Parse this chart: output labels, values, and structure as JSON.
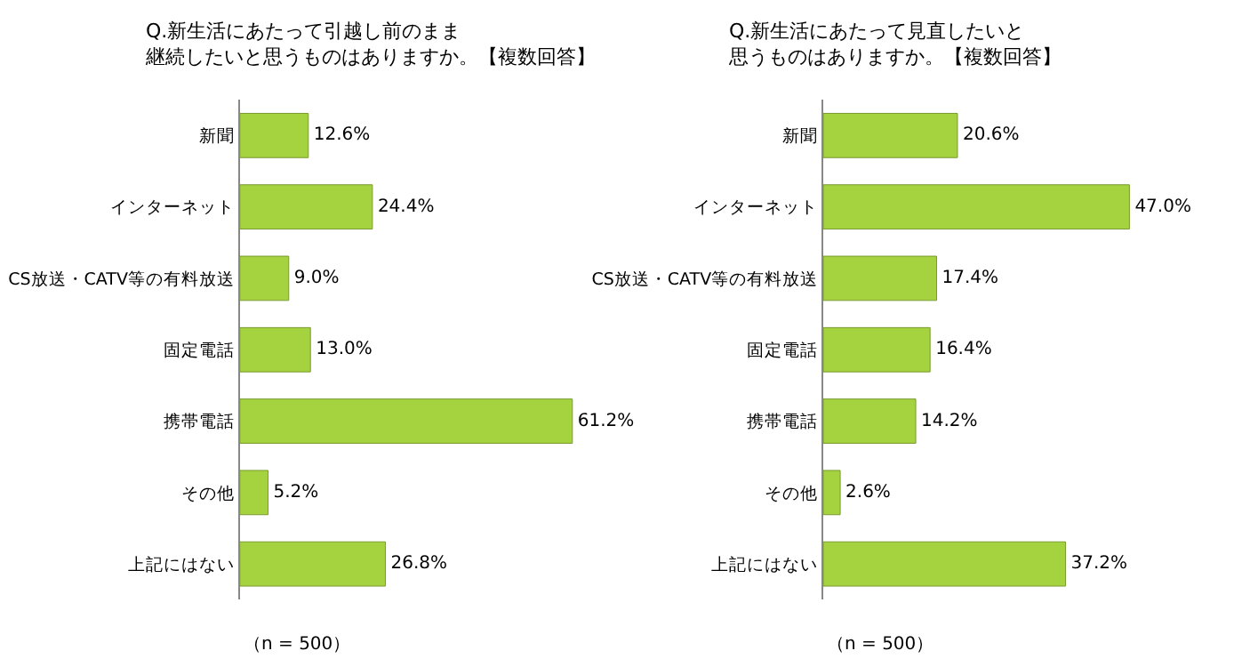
{
  "chart_data": [
    {
      "type": "bar",
      "orientation": "horizontal",
      "title": "Q.新生活にあたって引越し前のまま継続したいと思うものはありますか。【複数回答】",
      "categories": [
        "新聞",
        "インターネット",
        "CS放送・CATV等の有料放送",
        "固定電話",
        "携帯電話",
        "その他",
        "上記にはない"
      ],
      "values": [
        12.6,
        24.4,
        9.0,
        13.0,
        61.2,
        5.2,
        26.8
      ],
      "value_labels": [
        "12.6%",
        "24.4%",
        "9.0%",
        "13.0%",
        "61.2%",
        "5.2%",
        "26.8%"
      ],
      "color": "#a5d23f",
      "tick_labels": "y",
      "legend": false,
      "annotations": [
        "（n = 500）"
      ]
    },
    {
      "type": "bar",
      "orientation": "horizontal",
      "title": "Q.新生活にあたって見直したいと思うものはありますか。【複数回答】",
      "categories": [
        "新聞",
        "インターネット",
        "CS放送・CATV等の有料放送",
        "固定電話",
        "携帯電話",
        "その他",
        "上記にはない"
      ],
      "values": [
        20.6,
        47.0,
        17.4,
        16.4,
        14.2,
        2.6,
        37.2
      ],
      "value_labels": [
        "20.6%",
        "47.0%",
        "17.4%",
        "16.4%",
        "14.2%",
        "2.6%",
        "37.2%"
      ],
      "color": "#a5d23f",
      "tick_labels": "y",
      "legend": false,
      "annotations": [
        "（n = 500）"
      ]
    }
  ]
}
